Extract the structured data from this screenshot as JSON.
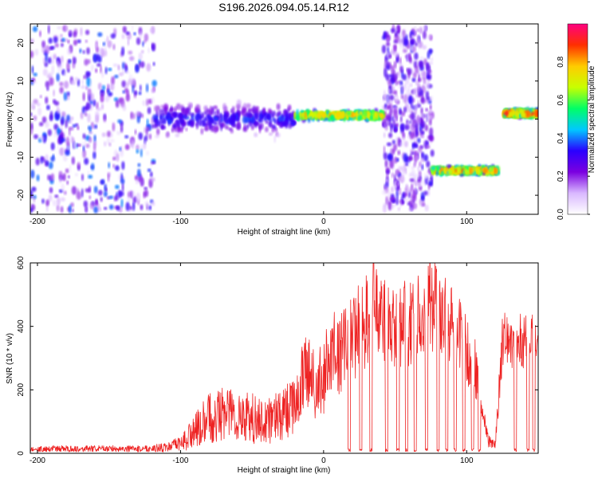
{
  "figure_title": "S196.2026.094.05.14.R12",
  "chart_data": [
    {
      "type": "heatmap",
      "title": "S196.2026.094.05.14.R12",
      "xlabel": "Height of straight line (km)",
      "ylabel": "Frequency (Hz)",
      "xlim": [
        -205,
        150
      ],
      "ylim": [
        -25,
        25
      ],
      "xticks": [
        -200,
        -100,
        0,
        100
      ],
      "yticks": [
        -20,
        -10,
        0,
        10,
        20
      ],
      "xtick_labels": [
        "-200",
        "-100",
        "0",
        "100"
      ],
      "ytick_labels": [
        "-20",
        "-10",
        "0",
        "10",
        "20"
      ],
      "colorbar": {
        "label": "Normalized spectral amplitude",
        "range": [
          0.0,
          1.0
        ],
        "ticks": [
          0.0,
          0.2,
          0.4,
          0.6,
          0.8
        ],
        "tick_labels": [
          "0.0",
          "0.2",
          "0.4",
          "0.6",
          "0.8"
        ],
        "colors": [
          "#ffffff",
          "#d9b8ff",
          "#7b00e0",
          "#2a00ff",
          "#00c8ff",
          "#00ff66",
          "#c8ff00",
          "#ffcc00",
          "#ff3000",
          "#ff0080"
        ]
      },
      "regions": [
        {
          "x_range": [
            -205,
            -118
          ],
          "f_center": 0,
          "f_spread": 24,
          "amplitude": 0.18,
          "description": "noise"
        },
        {
          "x_range": [
            -118,
            -20
          ],
          "f_center": 0,
          "f_spread": 6,
          "amplitude": 0.35
        },
        {
          "x_range": [
            -20,
            42
          ],
          "f_center": 1,
          "f_spread": 1.5,
          "amplitude": 0.8
        },
        {
          "x_range": [
            42,
            76
          ],
          "f_center": 0,
          "f_spread": 24,
          "amplitude": 0.15,
          "description": "noise"
        },
        {
          "x_range": [
            76,
            122
          ],
          "f_center": -13.5,
          "f_spread": 1.2,
          "amplitude": 0.85
        },
        {
          "x_range": [
            126,
            150
          ],
          "f_center": 1.5,
          "f_spread": 1.2,
          "amplitude": 0.9
        }
      ]
    },
    {
      "type": "line",
      "xlabel": "Height of straight line (km)",
      "ylabel": "SNR (10 * v/v)",
      "xlim": [
        -205,
        150
      ],
      "ylim": [
        0,
        600
      ],
      "xticks": [
        -200,
        -100,
        0,
        100
      ],
      "yticks": [
        0,
        200,
        400,
        600
      ],
      "xtick_labels": [
        "-200",
        "-100",
        "0",
        "100"
      ],
      "ytick_labels": [
        "0",
        "200",
        "400",
        "600"
      ],
      "series": [
        {
          "name": "SNR",
          "color": "#ee2222",
          "x": [
            -205,
            -190,
            -170,
            -150,
            -130,
            -110,
            -100,
            -90,
            -80,
            -70,
            -60,
            -50,
            -40,
            -30,
            -20,
            -15,
            -10,
            -5,
            0,
            5,
            10,
            20,
            30,
            35,
            40,
            50,
            60,
            70,
            75,
            80,
            90,
            100,
            105,
            110,
            115,
            120,
            125,
            130,
            140,
            150
          ],
          "values": [
            12,
            15,
            14,
            15,
            14,
            18,
            30,
            70,
            110,
            130,
            120,
            110,
            100,
            120,
            150,
            230,
            260,
            200,
            240,
            330,
            300,
            360,
            420,
            480,
            430,
            400,
            410,
            440,
            470,
            450,
            390,
            340,
            290,
            160,
            40,
            25,
            350,
            360,
            350,
            370
          ],
          "noise_amplitude": [
            8,
            10,
            10,
            10,
            10,
            14,
            25,
            55,
            80,
            90,
            85,
            80,
            75,
            80,
            90,
            120,
            120,
            110,
            120,
            130,
            130,
            140,
            150,
            150,
            140,
            130,
            140,
            140,
            150,
            140,
            130,
            120,
            110,
            60,
            20,
            15,
            90,
            90,
            90,
            90
          ],
          "dropout_x": [
            18,
            26,
            33,
            44,
            52,
            58,
            64,
            72,
            80,
            86,
            92,
            98,
            104,
            109,
            134,
            143,
            147
          ]
        }
      ]
    }
  ]
}
